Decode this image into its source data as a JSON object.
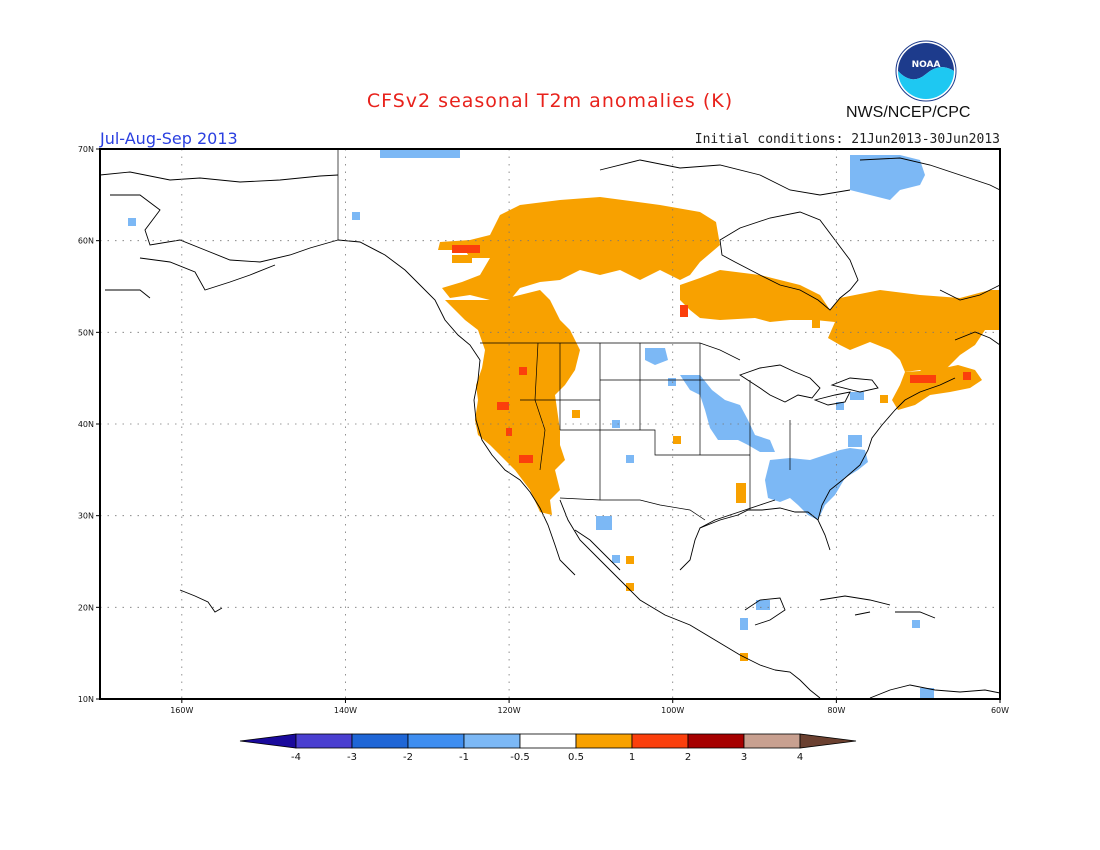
{
  "header": {
    "title": "CFSv2 seasonal T2m anomalies (K)",
    "period": "Jul-Aug-Sep 2013",
    "initial_conditions": "Initial conditions: 21Jun2013-30Jun2013",
    "agency": "NWS/NCEP/CPC",
    "logo_text": "NOAA"
  },
  "map": {
    "projection": "lat-lon",
    "lon_range": [
      -170,
      -60
    ],
    "lat_range": [
      10,
      70
    ],
    "lon_ticks": [
      {
        "lon": -160,
        "label": "160W"
      },
      {
        "lon": -140,
        "label": "140W"
      },
      {
        "lon": -120,
        "label": "120W"
      },
      {
        "lon": -100,
        "label": "100W"
      },
      {
        "lon": -80,
        "label": "80W"
      },
      {
        "lon": -60,
        "label": "60W"
      }
    ],
    "lat_ticks": [
      {
        "lat": 70,
        "label": "70N"
      },
      {
        "lat": 60,
        "label": "60N"
      },
      {
        "lat": 50,
        "label": "50N"
      },
      {
        "lat": 40,
        "label": "40N"
      },
      {
        "lat": 30,
        "label": "30N"
      },
      {
        "lat": 20,
        "label": "20N"
      },
      {
        "lat": 10,
        "label": "10N"
      }
    ],
    "grid": "dotted"
  },
  "colorbar": {
    "labels": [
      "-4",
      "-3",
      "-2",
      "-1",
      "-0.5",
      "0.5",
      "1",
      "2",
      "3",
      "4"
    ],
    "colors": [
      "#1a0a9c",
      "#4a3fd0",
      "#1f66d6",
      "#3f8ef0",
      "#7cb8f5",
      "#ffffff",
      "#f8a100",
      "#fb3f0c",
      "#a60000",
      "#c8a090",
      "#6b4030"
    ]
  },
  "anomaly_colors": {
    "warm_05_1": "#f8a100",
    "warm_1_2": "#fb3f0c",
    "cold_m1_m05": "#7cb8f5"
  }
}
